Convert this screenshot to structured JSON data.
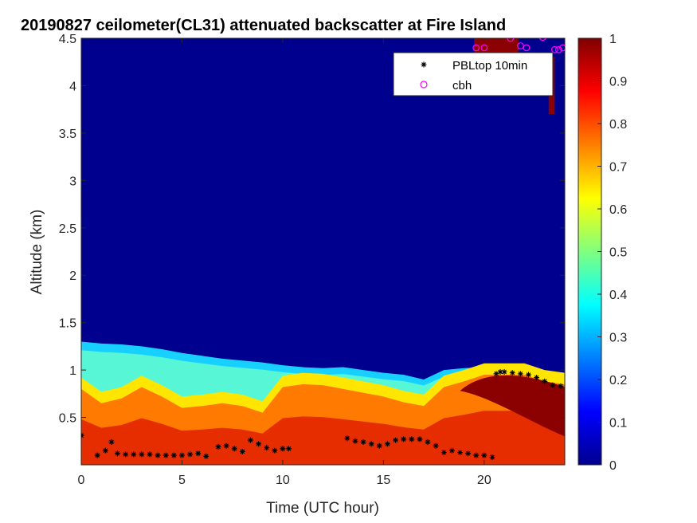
{
  "chart_data": {
    "type": "heatmap",
    "title": "20190827 ceilometer(CL31) attenuated backscatter at Fire Island",
    "xlabel": "Time (UTC hour)",
    "ylabel": "Altitude (km)",
    "xlim": [
      0,
      24
    ],
    "ylim": [
      0,
      4.5
    ],
    "xticks": [
      "0",
      "5",
      "10",
      "15",
      "20"
    ],
    "yticks": [
      "0.5",
      "1",
      "1.5",
      "2",
      "2.5",
      "3",
      "3.5",
      "4",
      "4.5"
    ],
    "colorbar": {
      "range": [
        0,
        1
      ],
      "ticks": [
        "0",
        "0.1",
        "0.2",
        "0.3",
        "0.4",
        "0.5",
        "0.6",
        "0.7",
        "0.8",
        "0.9",
        "1"
      ],
      "colormap": "jet"
    },
    "legend": {
      "position": "top-right",
      "entries": [
        "PBLtop 10min",
        "cbh"
      ]
    },
    "background_color": "#00008f",
    "layers": {
      "aerosol_top_km": [
        [
          0,
          1.3
        ],
        [
          1,
          1.28
        ],
        [
          2,
          1.27
        ],
        [
          3,
          1.25
        ],
        [
          4,
          1.22
        ],
        [
          5,
          1.18
        ],
        [
          6,
          1.15
        ],
        [
          7,
          1.12
        ],
        [
          8,
          1.1
        ],
        [
          9,
          1.08
        ],
        [
          10,
          1.05
        ],
        [
          11,
          1.03
        ],
        [
          12,
          1.02
        ],
        [
          13,
          1.03
        ],
        [
          14,
          1.0
        ],
        [
          15,
          0.97
        ],
        [
          16,
          0.95
        ],
        [
          17,
          0.9
        ],
        [
          18,
          1.0
        ],
        [
          19,
          1.02
        ],
        [
          20,
          1.03
        ],
        [
          21,
          1.05
        ],
        [
          22,
          1.02
        ],
        [
          23,
          0.98
        ],
        [
          24,
          0.95
        ]
      ],
      "boundary_layer_top_km": [
        [
          0,
          0.8
        ],
        [
          1,
          0.65
        ],
        [
          2,
          0.7
        ],
        [
          3,
          0.82
        ],
        [
          4,
          0.72
        ],
        [
          5,
          0.6
        ],
        [
          6,
          0.62
        ],
        [
          7,
          0.65
        ],
        [
          8,
          0.62
        ],
        [
          9,
          0.55
        ],
        [
          10,
          0.82
        ],
        [
          11,
          0.85
        ],
        [
          12,
          0.84
        ],
        [
          13,
          0.8
        ],
        [
          14,
          0.76
        ],
        [
          15,
          0.72
        ],
        [
          16,
          0.66
        ],
        [
          17,
          0.62
        ],
        [
          18,
          0.82
        ],
        [
          19,
          0.88
        ],
        [
          20,
          0.95
        ],
        [
          21,
          0.95
        ],
        [
          22,
          0.95
        ],
        [
          23,
          0.88
        ],
        [
          24,
          0.85
        ]
      ],
      "saturated_region": {
        "x_range_hours": [
          18.8,
          24
        ],
        "top_km": 0.98,
        "bottom_km": 0.3
      },
      "high_cloud": {
        "x_range_hours": [
          19.5,
          24
        ],
        "altitude_range_km": [
          3.7,
          4.5
        ]
      }
    },
    "series": [
      {
        "name": "PBLtop 10min",
        "marker": "asterisk",
        "color": "#000000",
        "x": [
          0.0,
          0.8,
          1.2,
          1.5,
          1.8,
          2.2,
          2.6,
          3.0,
          3.4,
          3.8,
          4.2,
          4.6,
          5.0,
          5.4,
          5.8,
          6.2,
          6.8,
          7.2,
          7.6,
          8.0,
          8.4,
          8.8,
          9.2,
          9.6,
          10.0,
          10.3,
          13.2,
          13.6,
          14.0,
          14.4,
          14.8,
          15.2,
          15.6,
          16.0,
          16.4,
          16.8,
          17.2,
          17.6,
          18.0,
          18.4,
          18.8,
          19.2,
          19.6,
          20.0,
          20.4,
          20.6,
          20.8,
          21.0,
          21.4,
          21.8,
          22.2,
          22.6,
          23.0,
          23.4,
          23.8
        ],
        "y": [
          0.31,
          0.1,
          0.15,
          0.24,
          0.12,
          0.11,
          0.11,
          0.11,
          0.11,
          0.1,
          0.1,
          0.1,
          0.1,
          0.11,
          0.12,
          0.09,
          0.19,
          0.2,
          0.17,
          0.14,
          0.26,
          0.22,
          0.18,
          0.15,
          0.17,
          0.17,
          0.28,
          0.25,
          0.24,
          0.22,
          0.2,
          0.22,
          0.26,
          0.27,
          0.27,
          0.27,
          0.24,
          0.2,
          0.13,
          0.15,
          0.13,
          0.12,
          0.1,
          0.1,
          0.08,
          0.96,
          0.98,
          0.98,
          0.97,
          0.96,
          0.95,
          0.92,
          0.88,
          0.84,
          0.83
        ]
      },
      {
        "name": "cbh",
        "marker": "circle",
        "color": "#ff00ff",
        "x": [
          19.6,
          20.0,
          21.3,
          21.8,
          22.1,
          22.9,
          23.5,
          23.7,
          23.9
        ],
        "y": [
          4.4,
          4.4,
          4.5,
          4.42,
          4.4,
          4.51,
          4.38,
          4.38,
          4.4
        ]
      }
    ]
  }
}
